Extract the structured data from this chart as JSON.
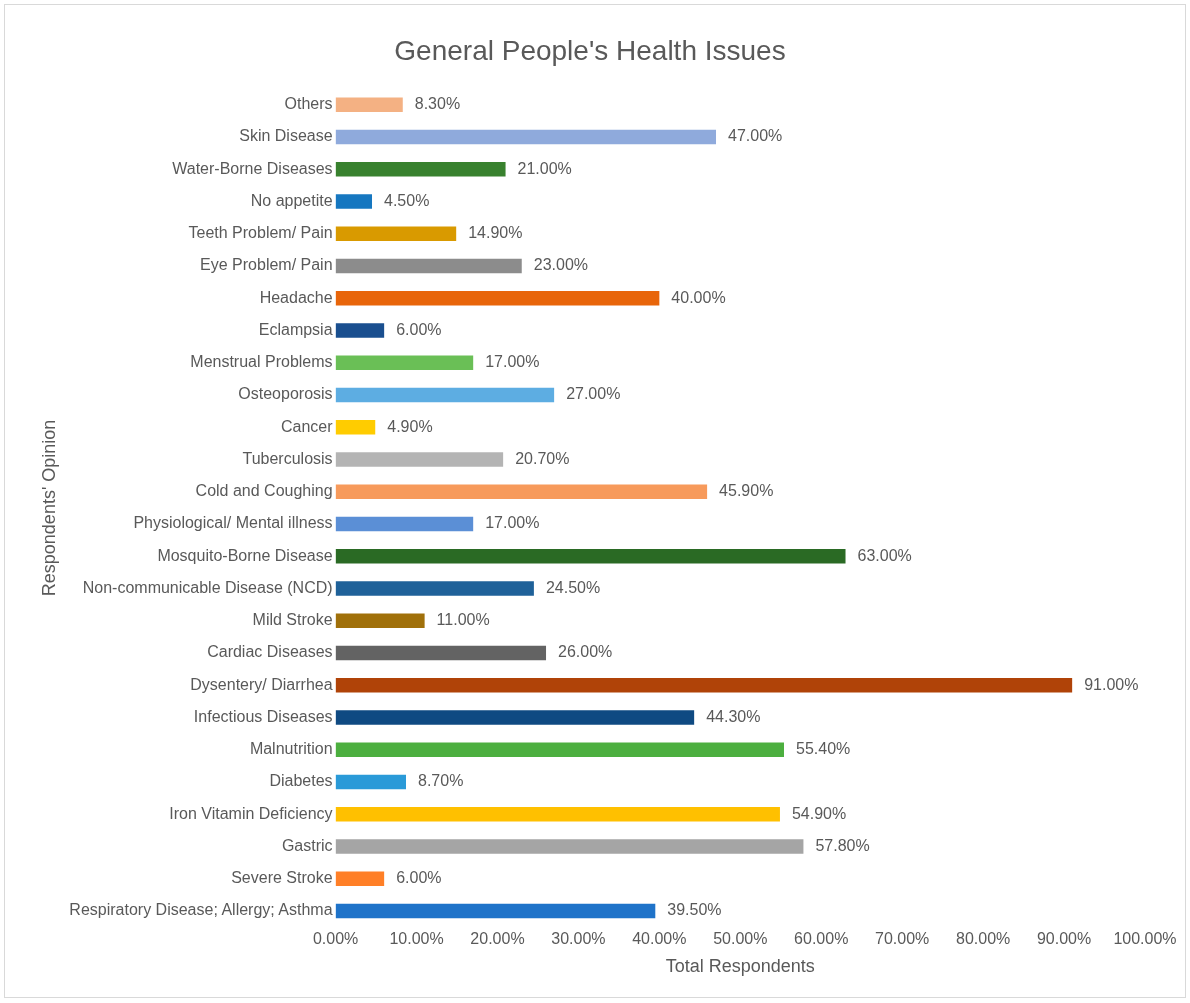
{
  "chart_data": {
    "type": "bar",
    "orientation": "horizontal",
    "title": "General People's Health Issues",
    "xlabel": "Total Respondents",
    "ylabel": "Respondents' Opinion",
    "categories": [
      "Others",
      "Skin Disease",
      "Water-Borne Diseases",
      "No appetite",
      "Teeth Problem/ Pain",
      "Eye Problem/ Pain",
      "Headache",
      "Eclampsia",
      "Menstrual Problems",
      "Osteoporosis",
      "Cancer",
      "Tuberculosis",
      "Cold and Coughing",
      "Physiological/ Mental illness",
      "Mosquito-Borne Disease",
      "Non-communicable Disease (NCD)",
      "Mild Stroke",
      "Cardiac Diseases",
      "Dysentery/ Diarrhea",
      "Infectious Diseases",
      "Malnutrition",
      "Diabetes",
      "Iron Vitamin Deficiency",
      "Gastric",
      "Severe Stroke",
      "Respiratory Disease; Allergy; Asthma"
    ],
    "values": [
      8.3,
      47,
      21,
      4.5,
      14.9,
      23,
      40,
      6,
      17,
      27,
      4.9,
      20.7,
      45.9,
      17,
      63,
      24.5,
      11,
      26,
      91,
      44.3,
      55.4,
      8.7,
      54.9,
      57.8,
      6,
      39.5
    ],
    "value_labels": [
      "8.30%",
      "47.00%",
      "21.00%",
      "4.50%",
      "14.90%",
      "23.00%",
      "40.00%",
      "6.00%",
      "17.00%",
      "27.00%",
      "4.90%",
      "20.70%",
      "45.90%",
      "17.00%",
      "63.00%",
      "24.50%",
      "11.00%",
      "26.00%",
      "91.00%",
      "44.30%",
      "55.40%",
      "8.70%",
      "54.90%",
      "57.80%",
      "6.00%",
      "39.50%"
    ],
    "colors": [
      "#f4b183",
      "#8faadc",
      "#38812e",
      "#1677c0",
      "#d99a00",
      "#8c8c8c",
      "#e8650a",
      "#1a4f8f",
      "#6abf56",
      "#5dade2",
      "#ffcc00",
      "#b4b4b4",
      "#f79a5b",
      "#5b8fd6",
      "#2a6a24",
      "#1f6199",
      "#a0700a",
      "#636363",
      "#b04308",
      "#0f4a82",
      "#4caf3f",
      "#2a9ad8",
      "#ffc000",
      "#a5a5a5",
      "#ff7f27",
      "#1f73c9"
    ],
    "xlim": [
      0,
      100
    ],
    "xticks": [
      {
        "value": 0,
        "label": "0.00%"
      },
      {
        "value": 10,
        "label": "10.00%"
      },
      {
        "value": 20,
        "label": "20.00%"
      },
      {
        "value": 30,
        "label": "30.00%"
      },
      {
        "value": 40,
        "label": "40.00%"
      },
      {
        "value": 50,
        "label": "50.00%"
      },
      {
        "value": 60,
        "label": "60.00%"
      },
      {
        "value": 70,
        "label": "70.00%"
      },
      {
        "value": 80,
        "label": "80.00%"
      },
      {
        "value": 90,
        "label": "90.00%"
      },
      {
        "value": 100,
        "label": "100.00%"
      }
    ],
    "grid": false,
    "legend": false
  }
}
